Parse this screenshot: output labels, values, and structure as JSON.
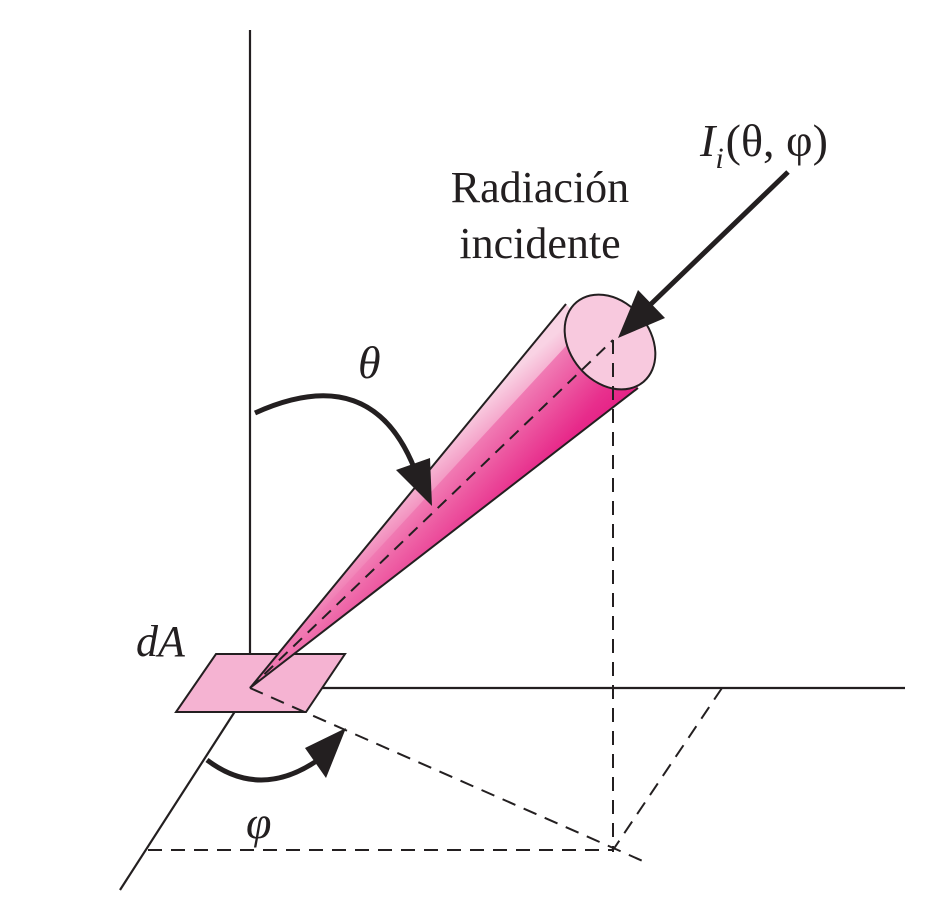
{
  "labels": {
    "radiation_line1": "Radiación",
    "radiation_line2": "incidente",
    "intensity_main": "I",
    "intensity_sub": "i",
    "intensity_args": "(θ, φ)",
    "theta": "θ",
    "area": "dA",
    "phi": "φ"
  },
  "colors": {
    "line": "#231f20",
    "cone_light": "#f7c6dc",
    "cone_mid": "#ee5ea4",
    "cone_dark": "#e4117e",
    "patch_fill": "#f5b3d2"
  },
  "icons": {
    "arrow_heads": "filled-triangle"
  }
}
